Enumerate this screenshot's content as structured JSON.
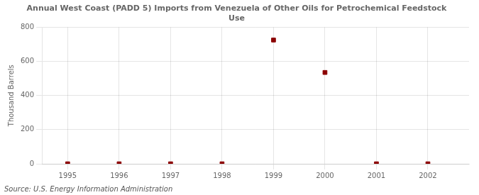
{
  "chart_data": {
    "type": "scatter",
    "title": "Annual West Coast (PADD 5) Imports from Venezuela of Other Oils for Petrochemical Feedstock\nUse",
    "y_label": "Thousand Barrels",
    "annotations": [
      "Source: U.S. Energy Information Administration"
    ],
    "x": [
      1995,
      1996,
      1997,
      1998,
      1999,
      2000,
      2001,
      2002
    ],
    "values": [
      0,
      0,
      0,
      0,
      725,
      535,
      0,
      0
    ],
    "color": "#8b0000",
    "marker": "square",
    "xlim": [
      1994.5,
      2002.8
    ],
    "xticks": [
      1995,
      1996,
      1997,
      1998,
      1999,
      2000,
      2001,
      2002
    ],
    "ylim": [
      0,
      800
    ],
    "yticks": [
      0,
      200,
      400,
      600,
      800
    ],
    "grid": true
  }
}
